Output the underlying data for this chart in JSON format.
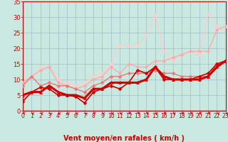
{
  "xlabel": "Vent moyen/en rafales ( km/h )",
  "xlim": [
    0,
    23
  ],
  "ylim": [
    0,
    35
  ],
  "yticks": [
    0,
    5,
    10,
    15,
    20,
    25,
    30,
    35
  ],
  "xticks": [
    0,
    1,
    2,
    3,
    4,
    5,
    6,
    7,
    8,
    9,
    10,
    11,
    12,
    13,
    14,
    15,
    16,
    17,
    18,
    19,
    20,
    21,
    22,
    23
  ],
  "background_color": "#c8e8e0",
  "grid_color": "#a0bcc8",
  "series": [
    {
      "x": [
        0,
        1,
        2,
        3,
        4,
        5,
        6,
        7,
        8,
        9,
        10,
        11,
        12,
        13,
        14,
        15,
        16,
        17,
        18,
        19,
        20,
        21,
        22,
        23
      ],
      "y": [
        3,
        6,
        7.5,
        7,
        5,
        5,
        4.5,
        2.5,
        6,
        7,
        8,
        7,
        9,
        13,
        12,
        14,
        10,
        10,
        10,
        10,
        11,
        12,
        15,
        16
      ],
      "color": "#cc0000",
      "alpha": 1.0,
      "linewidth": 1.2,
      "marker": "D",
      "markersize": 2.5,
      "zorder": 5
    },
    {
      "x": [
        0,
        1,
        2,
        3,
        4,
        5,
        6,
        7,
        8,
        9,
        10,
        11,
        12,
        13,
        14,
        15,
        16,
        17,
        18,
        19,
        20,
        21,
        22,
        23
      ],
      "y": [
        5,
        6,
        6,
        8,
        6,
        5,
        5,
        4,
        7,
        7,
        9,
        9,
        9,
        9,
        10,
        14,
        11,
        10,
        10,
        10,
        10,
        11,
        14,
        16
      ],
      "color": "#cc0000",
      "alpha": 1.0,
      "linewidth": 2.2,
      "marker": "^",
      "markersize": 3,
      "zorder": 6
    },
    {
      "x": [
        0,
        1,
        2,
        3,
        4,
        5,
        6,
        7,
        8,
        9,
        10,
        11,
        12,
        13,
        14,
        15,
        16,
        17,
        18,
        19,
        20,
        21,
        22,
        23
      ],
      "y": [
        8,
        11,
        8,
        9,
        8,
        8,
        7,
        6,
        8,
        9,
        11,
        11,
        12,
        12,
        12,
        13,
        12,
        12,
        11,
        11,
        11,
        11,
        15,
        16
      ],
      "color": "#ee7777",
      "alpha": 1.0,
      "linewidth": 1.0,
      "marker": "D",
      "markersize": 2.5,
      "zorder": 4
    },
    {
      "x": [
        0,
        1,
        2,
        3,
        4,
        5,
        6,
        7,
        8,
        9,
        10,
        11,
        12,
        13,
        14,
        15,
        16,
        17,
        18,
        19,
        20,
        21,
        22,
        23
      ],
      "y": [
        9,
        11,
        13,
        14,
        9,
        8,
        7,
        8,
        10,
        11,
        14,
        12,
        15,
        14,
        14,
        16,
        16,
        17,
        18,
        19,
        19,
        19,
        26,
        27
      ],
      "color": "#ffaaaa",
      "alpha": 1.0,
      "linewidth": 1.0,
      "marker": "D",
      "markersize": 2.5,
      "zorder": 3
    },
    {
      "x": [
        0,
        1,
        2,
        3,
        4,
        5,
        6,
        7,
        8,
        9,
        10,
        11,
        12,
        13,
        14,
        15,
        16,
        17,
        18,
        19,
        20,
        21,
        22,
        23
      ],
      "y": [
        9,
        11,
        14,
        14,
        10,
        9,
        8,
        9,
        11,
        12,
        15,
        21,
        21,
        21,
        24,
        31,
        19,
        16,
        18,
        19,
        18,
        31,
        27,
        26
      ],
      "color": "#ffcccc",
      "alpha": 1.0,
      "linewidth": 1.0,
      "marker": "D",
      "markersize": 2.5,
      "zorder": 2
    }
  ],
  "arrow_color": "#cc0000",
  "xlabel_color": "#cc0000",
  "tick_color": "#cc0000",
  "xlabel_fontsize": 7,
  "tick_fontsize": 5.5,
  "ytick_fontsize": 6
}
